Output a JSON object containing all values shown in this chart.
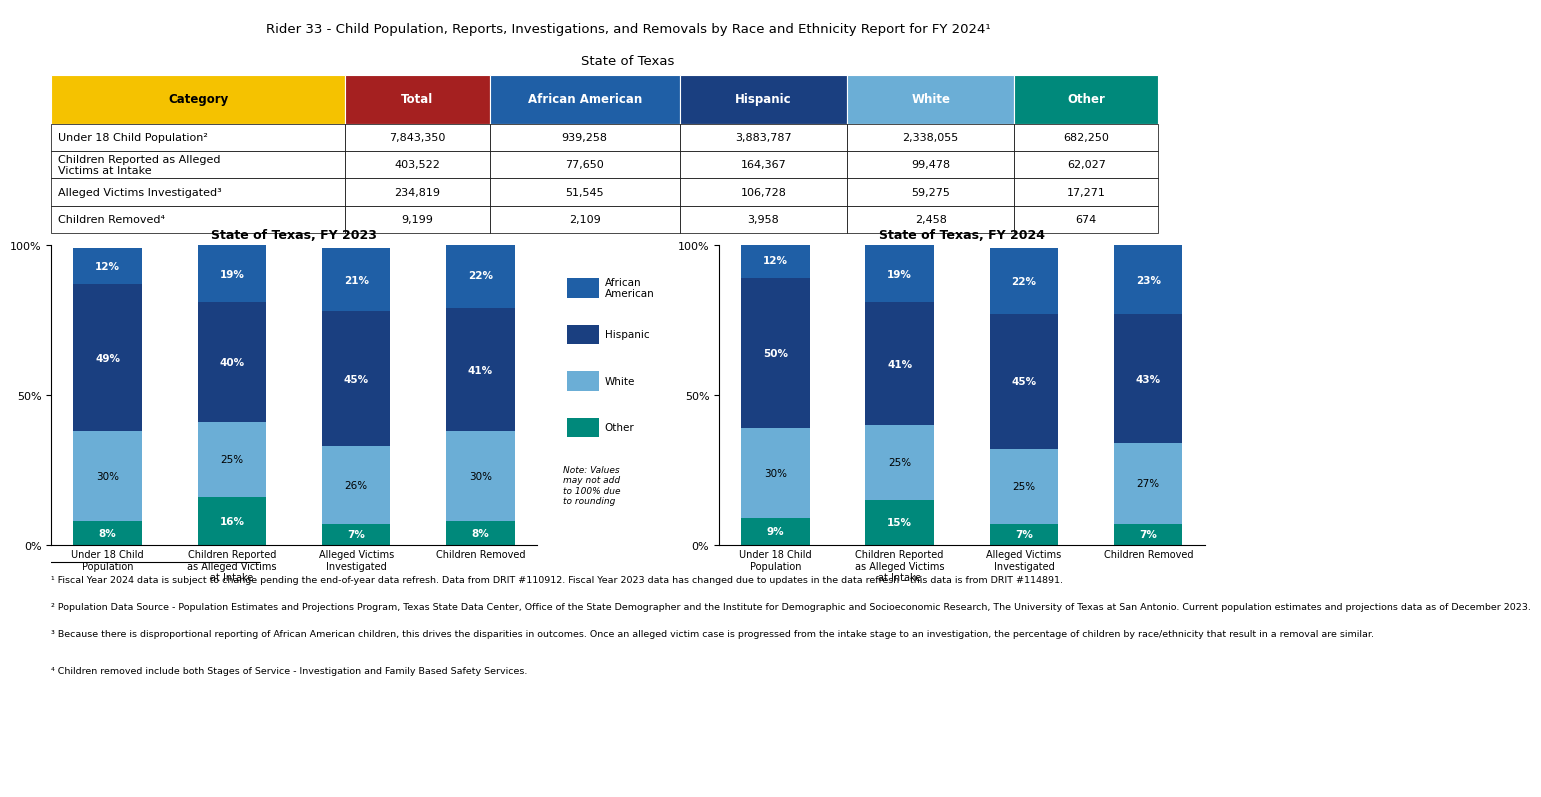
{
  "title_line1": "Rider 33 - Child Population, Reports, Investigations, and Removals by Race and Ethnicity Report for FY 2024¹",
  "title_line2": "State of Texas",
  "table": {
    "headers": [
      "Category",
      "Total",
      "African American",
      "Hispanic",
      "White",
      "Other"
    ],
    "header_colors": [
      "#F5C200",
      "#A52020",
      "#1F5FA6",
      "#1A3F80",
      "#6BAED6",
      "#00897B"
    ],
    "rows": [
      [
        "Under 18 Child Population²",
        "7,843,350",
        "939,258",
        "3,883,787",
        "2,338,055",
        "682,250"
      ],
      [
        "Children Reported as Alleged\nVictims at Intake",
        "403,522",
        "77,650",
        "164,367",
        "99,478",
        "62,027"
      ],
      [
        "Alleged Victims Investigated³",
        "234,819",
        "51,545",
        "106,728",
        "59,275",
        "17,271"
      ],
      [
        "Children Removed⁴",
        "9,199",
        "2,109",
        "3,958",
        "2,458",
        "674"
      ]
    ]
  },
  "fy2023": {
    "title": "State of Texas, FY 2023",
    "categories": [
      "Under 18 Child\nPopulation",
      "Children Reported\nas Alleged Victims\nat Intake",
      "Alleged Victims\nInvestigated",
      "Children Removed"
    ],
    "african_american": [
      12,
      19,
      21,
      22
    ],
    "hispanic": [
      49,
      40,
      45,
      41
    ],
    "white": [
      30,
      25,
      26,
      30
    ],
    "other": [
      8,
      16,
      7,
      8
    ]
  },
  "fy2024": {
    "title": "State of Texas, FY 2024",
    "categories": [
      "Under 18 Child\nPopulation",
      "Children Reported\nas Alleged Victims\nat Intake",
      "Alleged Victims\nInvestigated",
      "Children Removed"
    ],
    "african_american": [
      12,
      19,
      22,
      23
    ],
    "hispanic": [
      50,
      41,
      45,
      43
    ],
    "white": [
      30,
      25,
      25,
      27
    ],
    "other": [
      9,
      15,
      7,
      7
    ]
  },
  "colors": {
    "african_american": "#1F5FA6",
    "hispanic": "#1A3F80",
    "white": "#6BAED6",
    "other": "#00897B"
  },
  "footnotes": [
    "¹ Fiscal Year 2024 data is subject to change pending the end-of-year data refresh. Data from DRIT #110912. Fiscal Year 2023 data has changed due to updates in the data refresh – this data is from DRIT #114891.",
    "² Population Data Source - Population Estimates and Projections Program, Texas State Data Center, Office of the State Demographer and the Institute for Demographic and Socioeconomic Research, The University of Texas at San Antonio. Current population estimates and projections data as of December 2023.",
    "³ Because there is disproportional reporting of African American children, this drives the disparities in outcomes. Once an alleged victim case is progressed from the intake stage to an investigation, the percentage of children by race/ethnicity that result in a removal are similar.",
    "",
    "⁴ Children removed include both Stages of Service - Investigation and Family Based Safety Services."
  ]
}
